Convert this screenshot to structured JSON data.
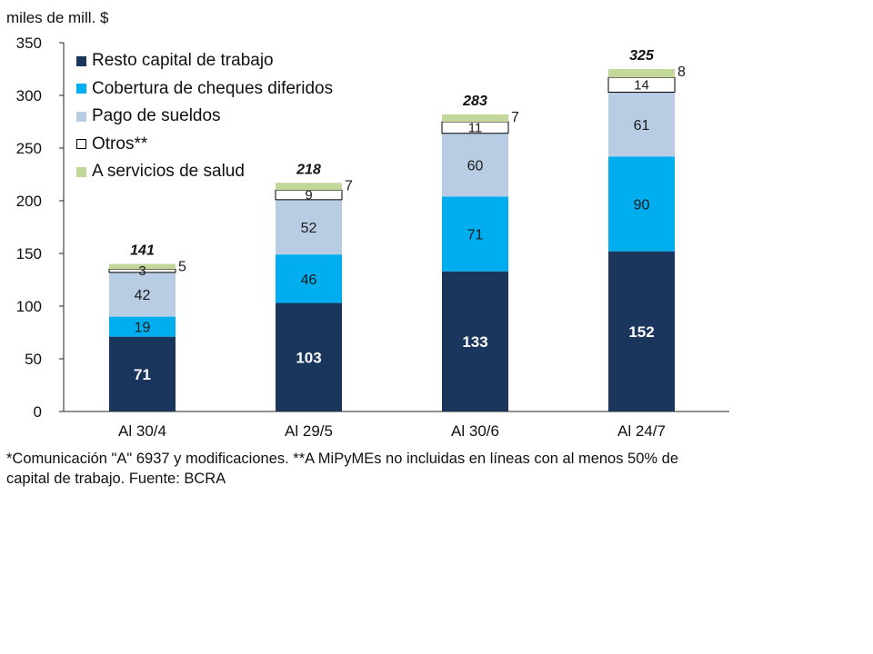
{
  "chart_data": {
    "type": "bar",
    "stacked": true,
    "unit_label": "miles de mill. $",
    "title": "",
    "xlabel": "",
    "ylabel": "miles de mill. $",
    "ylim": [
      0,
      350
    ],
    "yticks": [
      0,
      50,
      100,
      150,
      200,
      250,
      300,
      350
    ],
    "grid": false,
    "legend_position": "top-left",
    "categories": [
      "Al 30/4",
      "Al 29/5",
      "Al 30/6",
      "Al 24/7"
    ],
    "series": [
      {
        "name": "Resto capital de trabajo",
        "color": "#1b365d",
        "label_color": "#ffffff",
        "values": [
          71,
          103,
          133,
          152
        ]
      },
      {
        "name": "Cobertura de cheques diferidos",
        "color": "#00aeef",
        "label_color": "#1a1a1a",
        "values": [
          19,
          46,
          71,
          90
        ]
      },
      {
        "name": "Pago de sueldos",
        "color": "#b8cce4",
        "label_color": "#1a1a1a",
        "values": [
          42,
          52,
          60,
          61
        ]
      },
      {
        "name": "Otros**",
        "color": "#ffffff",
        "border": "#000000",
        "label_color": "#1a1a1a",
        "values": [
          3,
          9,
          11,
          14
        ]
      },
      {
        "name": "A servicios de salud",
        "color": "#c4d79b",
        "label_color": "#1a1a1a",
        "values": [
          5,
          7,
          7,
          8
        ],
        "label_outside": true
      }
    ],
    "totals": [
      141,
      218,
      283,
      325
    ]
  },
  "footnote": "*Comunicación \"A\" 6937 y modificaciones. **A MiPyMEs no incluidas en líneas con al menos 50% de capital de trabajo. Fuente: BCRA"
}
